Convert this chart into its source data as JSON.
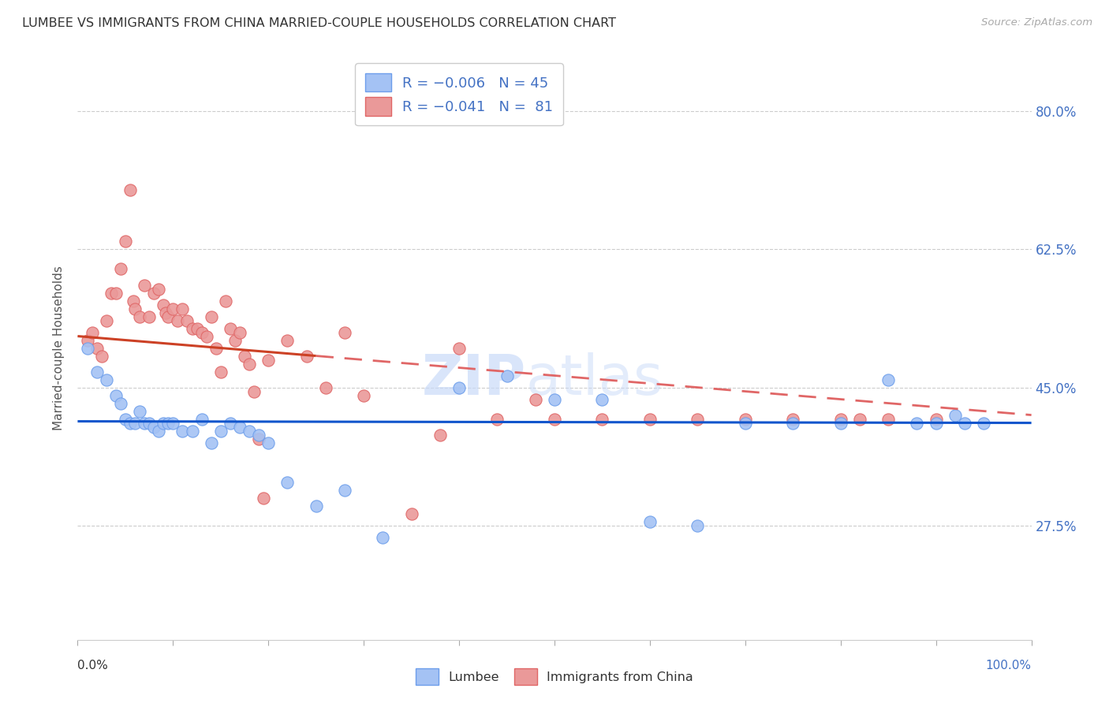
{
  "title": "LUMBEE VS IMMIGRANTS FROM CHINA MARRIED-COUPLE HOUSEHOLDS CORRELATION CHART",
  "source": "Source: ZipAtlas.com",
  "ylabel": "Married-couple Households",
  "yticks": [
    27.5,
    45.0,
    62.5,
    80.0
  ],
  "ytick_labels": [
    "27.5%",
    "45.0%",
    "62.5%",
    "80.0%"
  ],
  "lumbee_color": "#a4c2f4",
  "lumbee_edge": "#6d9eeb",
  "china_color": "#ea9999",
  "china_edge": "#e06666",
  "trend_lumbee_color": "#1155cc",
  "trend_china_color_solid": "#cc4125",
  "trend_china_color_dash": "#e06666",
  "watermark_color": "#c9daf8",
  "background_color": "#ffffff",
  "lumbee_x": [
    1.0,
    2.0,
    3.0,
    4.0,
    4.5,
    5.0,
    5.5,
    6.0,
    6.5,
    7.0,
    7.5,
    8.0,
    8.5,
    9.0,
    9.5,
    10.0,
    11.0,
    12.0,
    13.0,
    14.0,
    15.0,
    16.0,
    17.0,
    18.0,
    19.0,
    20.0,
    22.0,
    25.0,
    28.0,
    32.0,
    40.0,
    45.0,
    50.0,
    55.0,
    60.0,
    65.0,
    70.0,
    75.0,
    80.0,
    85.0,
    88.0,
    90.0,
    92.0,
    93.0,
    95.0
  ],
  "lumbee_y": [
    50.0,
    47.0,
    46.0,
    44.0,
    43.0,
    41.0,
    40.5,
    40.5,
    42.0,
    40.5,
    40.5,
    40.0,
    39.5,
    40.5,
    40.5,
    40.5,
    39.5,
    39.5,
    41.0,
    38.0,
    39.5,
    40.5,
    40.0,
    39.5,
    39.0,
    38.0,
    33.0,
    30.0,
    32.0,
    26.0,
    45.0,
    46.5,
    43.5,
    43.5,
    28.0,
    27.5,
    40.5,
    40.5,
    40.5,
    46.0,
    40.5,
    40.5,
    41.5,
    40.5,
    40.5
  ],
  "china_x": [
    1.0,
    1.5,
    2.0,
    2.5,
    3.0,
    3.5,
    4.0,
    4.5,
    5.0,
    5.5,
    5.8,
    6.0,
    6.5,
    7.0,
    7.5,
    8.0,
    8.5,
    9.0,
    9.2,
    9.5,
    10.0,
    10.5,
    11.0,
    11.5,
    12.0,
    12.5,
    13.0,
    13.5,
    14.0,
    14.5,
    15.0,
    15.5,
    16.0,
    16.5,
    17.0,
    17.5,
    18.0,
    18.5,
    19.0,
    19.5,
    20.0,
    22.0,
    24.0,
    26.0,
    28.0,
    30.0,
    35.0,
    38.0,
    40.0,
    44.0,
    48.0,
    50.0,
    55.0,
    60.0,
    65.0,
    70.0,
    75.0,
    80.0,
    82.0,
    85.0,
    90.0
  ],
  "china_y": [
    51.0,
    52.0,
    50.0,
    49.0,
    53.5,
    57.0,
    57.0,
    60.0,
    63.5,
    70.0,
    56.0,
    55.0,
    54.0,
    58.0,
    54.0,
    57.0,
    57.5,
    55.5,
    54.5,
    54.0,
    55.0,
    53.5,
    55.0,
    53.5,
    52.5,
    52.5,
    52.0,
    51.5,
    54.0,
    50.0,
    47.0,
    56.0,
    52.5,
    51.0,
    52.0,
    49.0,
    48.0,
    44.5,
    38.5,
    31.0,
    48.5,
    51.0,
    49.0,
    45.0,
    52.0,
    44.0,
    29.0,
    39.0,
    50.0,
    41.0,
    43.5,
    41.0,
    41.0,
    41.0,
    41.0,
    41.0,
    41.0,
    41.0,
    41.0,
    41.0,
    41.0
  ],
  "xlim": [
    0,
    100
  ],
  "ylim": [
    13,
    87
  ],
  "lumbee_trend_y0": 40.7,
  "lumbee_trend_y1": 40.5,
  "china_trend_y0": 51.5,
  "china_trend_y1": 41.5
}
